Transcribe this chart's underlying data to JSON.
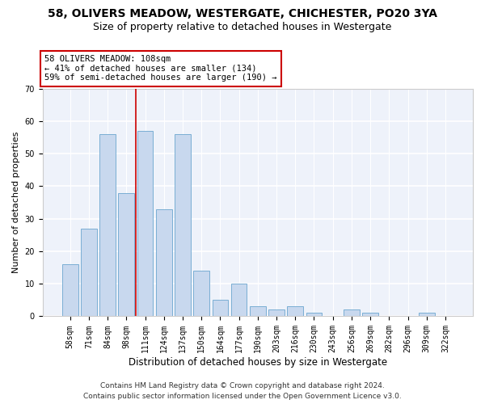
{
  "title1": "58, OLIVERS MEADOW, WESTERGATE, CHICHESTER, PO20 3YA",
  "title2": "Size of property relative to detached houses in Westergate",
  "xlabel": "Distribution of detached houses by size in Westergate",
  "ylabel": "Number of detached properties",
  "categories": [
    "58sqm",
    "71sqm",
    "84sqm",
    "98sqm",
    "111sqm",
    "124sqm",
    "137sqm",
    "150sqm",
    "164sqm",
    "177sqm",
    "190sqm",
    "203sqm",
    "216sqm",
    "230sqm",
    "243sqm",
    "256sqm",
    "269sqm",
    "282sqm",
    "296sqm",
    "309sqm",
    "322sqm"
  ],
  "values": [
    16,
    27,
    56,
    38,
    57,
    33,
    56,
    14,
    5,
    10,
    3,
    2,
    3,
    1,
    0,
    2,
    1,
    0,
    0,
    1,
    0
  ],
  "bar_color": "#c8d8ee",
  "bar_edge_color": "#7aaed4",
  "vline_x": 3.5,
  "annotation_text": "58 OLIVERS MEADOW: 108sqm\n← 41% of detached houses are smaller (134)\n59% of semi-detached houses are larger (190) →",
  "annotation_box_color": "#ffffff",
  "annotation_box_edge": "#cc0000",
  "vline_color": "#cc0000",
  "ylim": [
    0,
    70
  ],
  "yticks": [
    0,
    10,
    20,
    30,
    40,
    50,
    60,
    70
  ],
  "footer1": "Contains HM Land Registry data © Crown copyright and database right 2024.",
  "footer2": "Contains public sector information licensed under the Open Government Licence v3.0.",
  "bg_color": "#eef2fa",
  "grid_color": "#ffffff",
  "title1_fontsize": 10,
  "title2_fontsize": 9,
  "xlabel_fontsize": 8.5,
  "ylabel_fontsize": 8,
  "tick_fontsize": 7,
  "footer_fontsize": 6.5,
  "annotation_fontsize": 7.5
}
